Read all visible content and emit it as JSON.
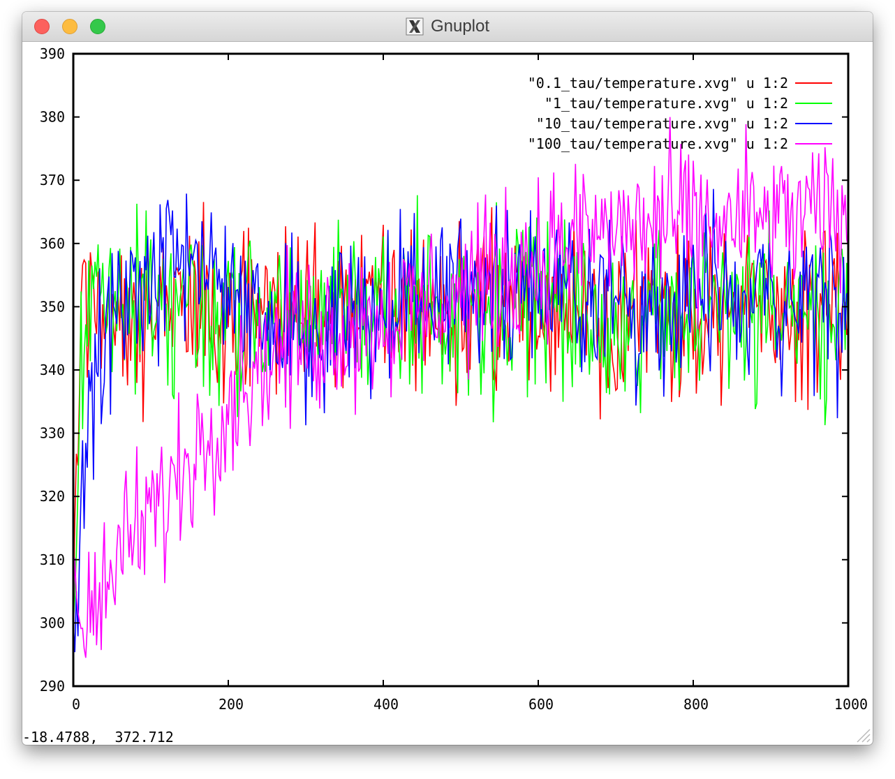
{
  "window": {
    "title": "Gnuplot",
    "icon": "x11-icon",
    "controls": [
      "close",
      "minimize",
      "zoom"
    ]
  },
  "status_bar": {
    "coords": "-18.4788,  372.712"
  },
  "colors": {
    "red": "#ff0000",
    "green": "#00ff00",
    "blue": "#0000ff",
    "magenta": "#ff00ff"
  },
  "chart_data": {
    "type": "line",
    "title": "",
    "xlabel": "",
    "ylabel": "",
    "xlim": [
      0,
      1000
    ],
    "ylim": [
      290,
      390
    ],
    "xticks": [
      0,
      200,
      400,
      600,
      800,
      1000
    ],
    "yticks": [
      290,
      300,
      310,
      320,
      330,
      340,
      350,
      360,
      370,
      380,
      390
    ],
    "grid": false,
    "legend_position": "top-right",
    "series": [
      {
        "name": "\"0.1_tau/temperature.xvg\" u 1:2",
        "color": "#ff0000",
        "x": [
          0,
          10,
          20,
          40,
          60,
          80,
          100,
          150,
          200,
          250,
          300,
          350,
          400,
          450,
          500,
          550,
          600,
          650,
          700,
          750,
          800,
          850,
          900,
          950,
          1000
        ],
        "y": [
          300,
          352,
          350,
          351,
          349,
          350,
          349,
          351,
          348,
          349,
          350,
          349,
          350,
          350,
          349,
          350,
          350,
          350,
          349,
          350,
          349,
          350,
          349,
          350,
          350
        ]
      },
      {
        "name": "\"1_tau/temperature.xvg\" u 1:2",
        "color": "#00ff00",
        "x": [
          0,
          10,
          20,
          40,
          60,
          80,
          100,
          150,
          200,
          250,
          300,
          350,
          400,
          450,
          500,
          550,
          600,
          650,
          700,
          750,
          800,
          850,
          900,
          950,
          1000
        ],
        "y": [
          300,
          340,
          350,
          352,
          351,
          352,
          351,
          350,
          349,
          348,
          348,
          350,
          350,
          349,
          350,
          350,
          349,
          350,
          348,
          349,
          349,
          350,
          349,
          349,
          349
        ]
      },
      {
        "name": "\"10_tau/temperature.xvg\" u 1:2",
        "color": "#0000ff",
        "x": [
          0,
          10,
          20,
          30,
          40,
          60,
          80,
          100,
          150,
          200,
          250,
          300,
          350,
          400,
          450,
          500,
          550,
          600,
          650,
          700,
          750,
          800,
          850,
          900,
          950,
          1000
        ],
        "y": [
          300,
          313,
          328,
          340,
          346,
          350,
          351,
          353,
          358,
          354,
          347,
          345,
          349,
          351,
          352,
          352,
          354,
          355,
          352,
          351,
          351,
          351,
          350,
          351,
          352,
          349
        ]
      },
      {
        "name": "\"100_tau/temperature.xvg\" u 1:2",
        "color": "#ff00ff",
        "x": [
          0,
          20,
          40,
          60,
          80,
          100,
          120,
          140,
          160,
          180,
          200,
          220,
          250,
          300,
          350,
          400,
          450,
          500,
          550,
          600,
          650,
          700,
          750,
          800,
          850,
          900,
          950,
          1000
        ],
        "y": [
          300,
          303,
          306,
          310,
          314,
          317,
          320,
          324,
          328,
          332,
          335,
          338,
          342,
          345,
          347,
          348,
          350,
          352,
          355,
          358,
          361,
          362,
          363,
          363,
          363,
          364,
          364,
          365
        ]
      }
    ]
  }
}
